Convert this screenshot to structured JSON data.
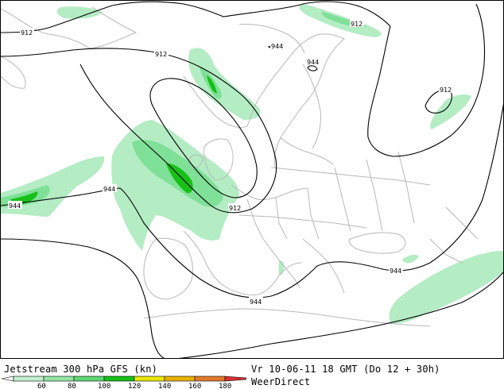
{
  "title": "Jetstream 300 hPa GFS (kn)",
  "valid_time": "Vr 10-06-11 18 GMT (Do 12 + 30h)",
  "source": "WeerDirect",
  "contour_labels": [
    "912",
    "944"
  ],
  "legend": {
    "ticks": [
      "60",
      "80",
      "100",
      "120",
      "140",
      "160",
      "180"
    ],
    "colors": [
      "#c2f0cf",
      "#93e5a6",
      "#5fd774",
      "#16c016",
      "#e9e600",
      "#e7b100",
      "#e07a2a",
      "#d93030"
    ]
  },
  "colors": {
    "coast": "#b8b8b8",
    "contour": "#000000",
    "jet_light": "#b4ecc3",
    "jet_medium": "#7fe097",
    "jet_strong": "#16c016"
  }
}
